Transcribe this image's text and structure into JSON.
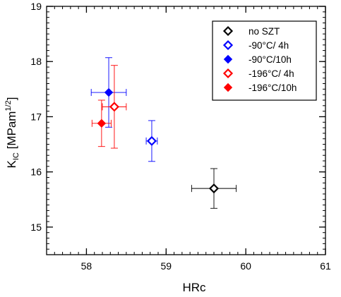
{
  "chart_data": {
    "type": "scatter",
    "xlabel": "HRc",
    "ylabel": {
      "main": "K",
      "sub": "IC",
      "rest_pre": " [MPam",
      "sup": "1/2",
      "rest_post": "]"
    },
    "xlim": [
      57.5,
      61
    ],
    "ylim": [
      14.5,
      19
    ],
    "xticks": [
      58,
      59,
      60,
      61
    ],
    "yticks": [
      15,
      16,
      17,
      18,
      19
    ],
    "x_minor_step": 0.1,
    "y_minor_step": 0.1,
    "grid": false,
    "legend_position": "top-right",
    "series": [
      {
        "name": "no SZT",
        "color": "#000000",
        "marker": "diamond-open",
        "points": [
          {
            "x": 59.6,
            "y": 15.7,
            "xerr": 0.28,
            "yerr": [
              0.36,
              0.36
            ]
          }
        ]
      },
      {
        "name": " -90°C/ 4h",
        "color": "#0000ff",
        "marker": "diamond-open",
        "points": [
          {
            "x": 58.82,
            "y": 16.56,
            "xerr": 0.07,
            "yerr": [
              0.37,
              0.37
            ]
          }
        ]
      },
      {
        "name": " -90°C/10h",
        "color": "#0000ff",
        "marker": "diamond-filled",
        "points": [
          {
            "x": 58.28,
            "y": 17.44,
            "xerr": 0.22,
            "yerr": [
              0.63,
              0.63
            ]
          }
        ]
      },
      {
        "name": "-196°C/ 4h",
        "color": "#ff0000",
        "marker": "diamond-open",
        "points": [
          {
            "x": 58.35,
            "y": 17.18,
            "xerr": 0.15,
            "yerr": [
              0.75,
              0.75
            ]
          }
        ]
      },
      {
        "name": "-196°C/10h",
        "color": "#ff0000",
        "marker": "diamond-filled",
        "points": [
          {
            "x": 58.19,
            "y": 16.88,
            "xerr": 0.12,
            "yerr": [
              0.42,
              0.42
            ]
          }
        ]
      }
    ]
  }
}
